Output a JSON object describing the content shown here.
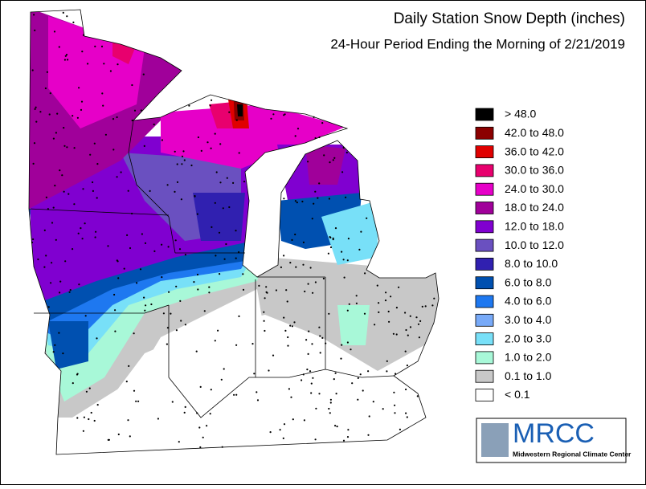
{
  "title": "Daily Station Snow Depth (inches)",
  "subtitle": "24-Hour Period Ending the Morning of 2/21/2019",
  "legend": {
    "items": [
      {
        "label": "> 48.0",
        "color": "#000000"
      },
      {
        "label": "42.0 to 48.0",
        "color": "#8b0000"
      },
      {
        "label": "36.0 to 42.0",
        "color": "#e00000"
      },
      {
        "label": "30.0 to 36.0",
        "color": "#e8006e"
      },
      {
        "label": "24.0 to 30.0",
        "color": "#e600c8"
      },
      {
        "label": "18.0 to 24.0",
        "color": "#a0009a"
      },
      {
        "label": "12.0 to 18.0",
        "color": "#8000d0"
      },
      {
        "label": "10.0 to 12.0",
        "color": "#6a50c0"
      },
      {
        "label": "8.0 to 10.0",
        "color": "#3020b0"
      },
      {
        "label": "6.0 to 8.0",
        "color": "#0050b0"
      },
      {
        "label": "4.0 to 6.0",
        "color": "#1e78f0"
      },
      {
        "label": "3.0 to 4.0",
        "color": "#78aaf8"
      },
      {
        "label": "2.0 to 3.0",
        "color": "#78e0f8"
      },
      {
        "label": "1.0 to 2.0",
        "color": "#a8f8d8"
      },
      {
        "label": "0.1 to 1.0",
        "color": "#c8c8c8"
      },
      {
        "label": "< 0.1",
        "color": "#ffffff"
      }
    ]
  },
  "logo": {
    "name": "MRCC",
    "subtitle": "Midwestern Regional Climate Center"
  }
}
